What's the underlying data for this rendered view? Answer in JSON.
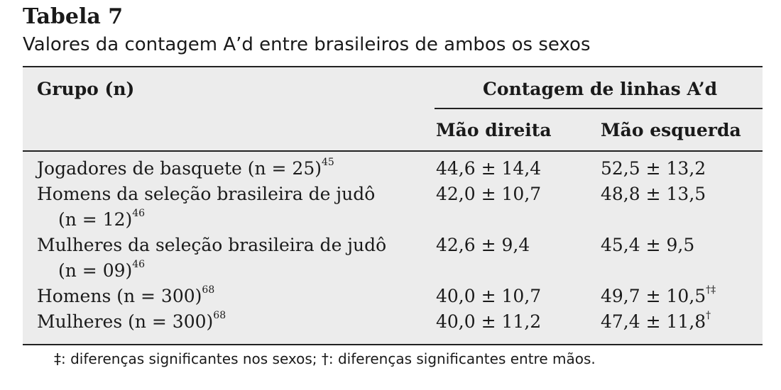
{
  "title": "Tabela 7",
  "caption": "Valores da contagem A’d entre brasileiros de ambos os sexos",
  "headers": {
    "group": "Grupo (n)",
    "span": "Contagem de linhas A’d",
    "right": "Mão direita",
    "left": "Mão esquerda"
  },
  "rows": [
    {
      "group_line1": "Jogadores de basquete (n = 25)",
      "group_ref1": "45",
      "group_line2": "",
      "group_ref2": "",
      "right": "44,6 ± 14,4",
      "left": "52,5 ± 13,2",
      "left_mark": ""
    },
    {
      "group_line1": "Homens da seleção brasileira de judô",
      "group_ref1": "",
      "group_line2": "(n = 12)",
      "group_ref2": "46",
      "right": "42,0 ± 10,7",
      "left": "48,8 ± 13,5",
      "left_mark": ""
    },
    {
      "group_line1": "Mulheres da seleção brasileira de judô",
      "group_ref1": "",
      "group_line2": "(n = 09)",
      "group_ref2": "46",
      "right": "42,6 ± 9,4",
      "left": "45,4 ± 9,5",
      "left_mark": ""
    },
    {
      "group_line1": "Homens (n = 300)",
      "group_ref1": "68",
      "group_line2": "",
      "group_ref2": "",
      "right": "40,0 ± 10,7",
      "left": "49,7 ± 10,5",
      "left_mark": "†‡"
    },
    {
      "group_line1": "Mulheres (n = 300)",
      "group_ref1": "68",
      "group_line2": "",
      "group_ref2": "",
      "right": "40,0 ± 11,2",
      "left": "47,4 ± 11,8",
      "left_mark": "†"
    }
  ],
  "footnote": "‡: diferenças significantes nos sexos; †: diferenças significantes entre mãos."
}
